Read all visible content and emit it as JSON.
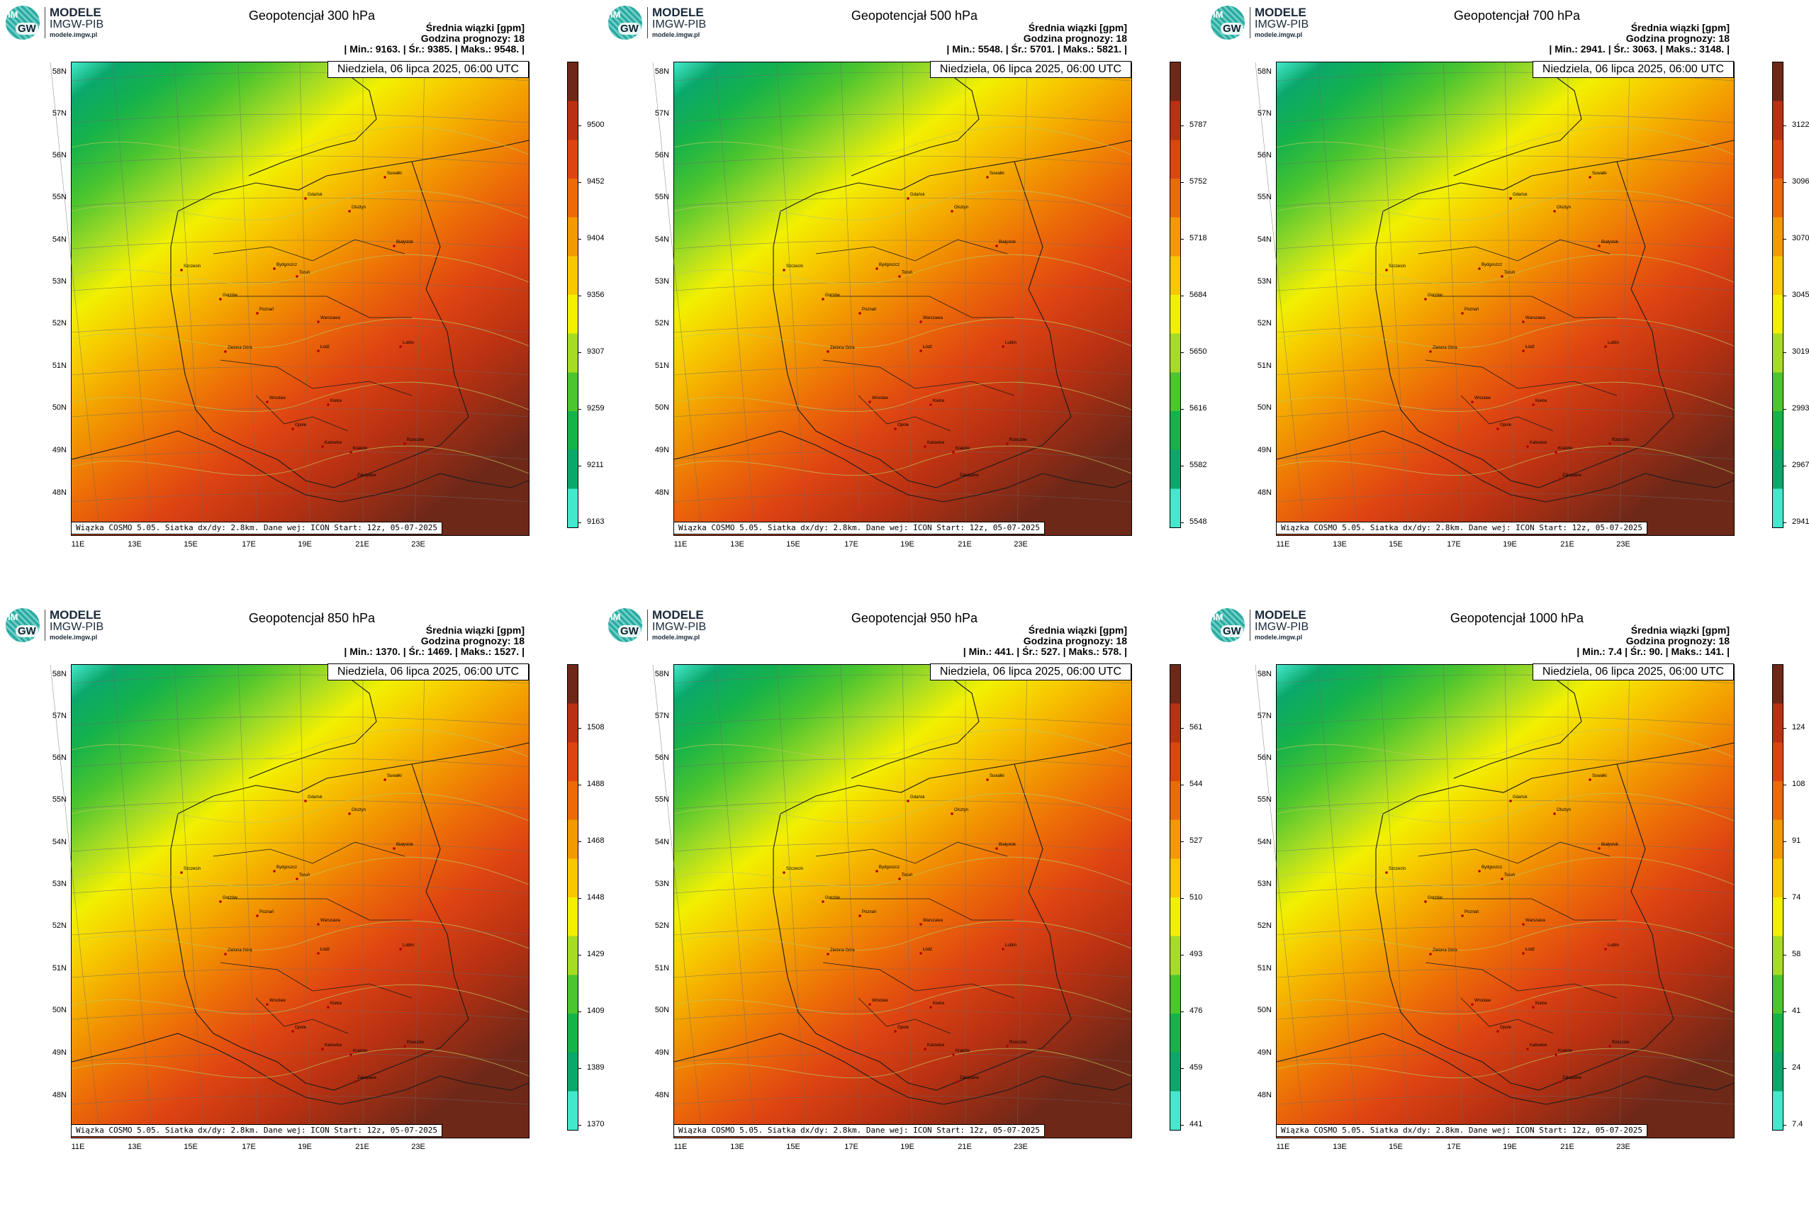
{
  "logo": {
    "im": "IM",
    "gw": "GW",
    "line1": "MODELE",
    "line2": "IMGW-PIB",
    "line3": "modele.imgw.pl"
  },
  "header_label": "Średnia wiązki [gpm]",
  "forecast_hour": "Godzina prognozy: 18",
  "date_label": "Niedziela, 06 lipca 2025, 06:00 UTC",
  "footer": "Wiązka COSMO 5.05. Siatka dx/dy: 2.8km. Dane wej: ICON Start: 12z, 05-07-2025",
  "lat_labels": [
    "58N",
    "57N",
    "56N",
    "55N",
    "54N",
    "53N",
    "52N",
    "51N",
    "50N",
    "49N",
    "48N"
  ],
  "lon_labels": [
    "11E",
    "13E",
    "15E",
    "17E",
    "19E",
    "21E",
    "23E"
  ],
  "cities": [
    "Gdańsk",
    "Olsztyn",
    "Suwałki",
    "Białystok",
    "Szczecin",
    "Bydgoszcz",
    "Toruń",
    "Gorzów",
    "Poznań",
    "Warszawa",
    "Łódź",
    "Zielona Góra",
    "Lublin",
    "Wrocław",
    "Kielce",
    "Opole",
    "Katowice",
    "Kraków",
    "Rzeszów",
    "Zakopane"
  ],
  "colors": [
    "#44e8cc",
    "#0aa86b",
    "#16b24a",
    "#4cc52e",
    "#a6dc24",
    "#f2f000",
    "#f7c800",
    "#f29a00",
    "#ec6a08",
    "#de4412",
    "#b93112",
    "#6e2818"
  ],
  "panels": [
    {
      "title": "Geopotencjał 300 hPa",
      "stats": "| Min.:   9163. | Śr.:   9385. | Maks.:   9548. |",
      "ticks": [
        "9500",
        "9452",
        "9404",
        "9356",
        "9307",
        "9259",
        "9211",
        "9163"
      ],
      "map": {
        "min": 9163,
        "mean": 9385,
        "max": 9548
      }
    },
    {
      "title": "Geopotencjał 500 hPa",
      "stats": "| Min.:   5548. | Śr.:   5701. | Maks.:   5821. |",
      "ticks": [
        "5787",
        "5752",
        "5718",
        "5684",
        "5650",
        "5616",
        "5582",
        "5548"
      ],
      "map": {
        "min": 5548,
        "mean": 5701,
        "max": 5821
      }
    },
    {
      "title": "Geopotencjał 700 hPa",
      "stats": "| Min.:   2941. | Śr.:   3063. | Maks.:   3148. |",
      "ticks": [
        "3122",
        "3096",
        "3070",
        "3045",
        "3019",
        "2993",
        "2967",
        "2941"
      ],
      "map": {
        "min": 2941,
        "mean": 3063,
        "max": 3148
      }
    },
    {
      "title": "Geopotencjał 850 hPa",
      "stats": "| Min.:   1370. | Śr.:   1469. | Maks.:   1527. |",
      "ticks": [
        "1508",
        "1488",
        "1468",
        "1448",
        "1429",
        "1409",
        "1389",
        "1370"
      ],
      "map": {
        "min": 1370,
        "mean": 1469,
        "max": 1527
      }
    },
    {
      "title": "Geopotencjał 950 hPa",
      "stats": "| Min.:   441. | Śr.:   527. | Maks.:   578. |",
      "ticks": [
        "561",
        "544",
        "527",
        "510",
        "493",
        "476",
        "459",
        "441"
      ],
      "map": {
        "min": 441,
        "mean": 527,
        "max": 578
      }
    },
    {
      "title": "Geopotencjał 1000 hPa",
      "stats": "| Min.:   7.4 | Śr.:   90. | Maks.:   141. |",
      "ticks": [
        "124",
        "108",
        "91",
        "74",
        "58",
        "41",
        "24",
        "7.4"
      ],
      "map": {
        "min": 7.4,
        "mean": 90,
        "max": 141
      }
    }
  ]
}
